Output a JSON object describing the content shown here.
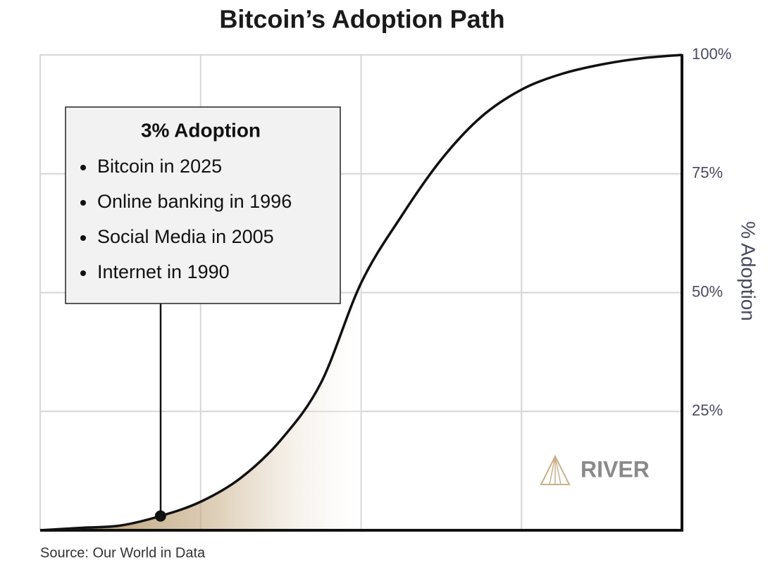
{
  "chart_data": {
    "type": "line",
    "title": "Bitcoin’s Adoption Path",
    "y_label": "% Adoption",
    "source": "Source: Our World in Data",
    "logo": "RIVER",
    "annotation": {
      "title": "3% Adoption",
      "items": [
        "Bitcoin in 2025",
        "Online banking in 1996",
        "Social Media in 2005",
        "Internet in 1990"
      ]
    },
    "categories": [
      null,
      null,
      null,
      null,
      null,
      null,
      null,
      null,
      null,
      null,
      null,
      null,
      null,
      null,
      null,
      null,
      null
    ],
    "values": [
      0,
      0.5,
      1,
      3,
      6,
      11,
      19,
      31,
      52,
      66,
      78,
      87,
      92.7,
      96,
      98,
      99.3,
      100
    ],
    "color": "#111111",
    "ylim": [
      0,
      100
    ],
    "yticks": [
      {
        "value": 25,
        "label": "25%"
      },
      {
        "value": 50,
        "label": "50%"
      },
      {
        "value": 75,
        "label": "75%"
      },
      {
        "value": 100,
        "label": "100%"
      }
    ],
    "grid": true
  }
}
